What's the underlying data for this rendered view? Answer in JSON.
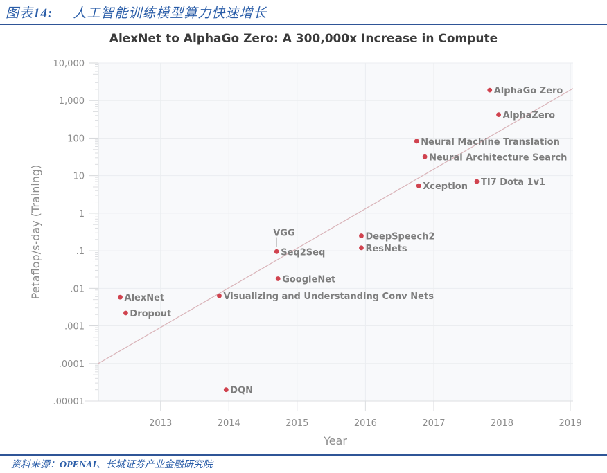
{
  "header": {
    "figure_prefix": "图表",
    "figure_number": "14:",
    "figure_title": "人工智能训练模型算力快速增长"
  },
  "footer": {
    "source_prefix": "资料来源：",
    "source_org": "OPENAI",
    "source_rest": "、长城证券产业金融研究院"
  },
  "colors": {
    "accent_blue": "#2f5597",
    "point_red": "#d0434f",
    "trend_line": "#d9b3b8",
    "plot_bg": "#f8f9fb",
    "grid": "#ebedf0"
  },
  "chart_data": {
    "type": "scatter",
    "title": "AlexNet to AlphaGo Zero: A 300,000x Increase in Compute",
    "xlabel": "Year",
    "ylabel": "Petaflop/s-day (Training)",
    "xlim": [
      2012.09,
      2019.04
    ],
    "ylim": [
      1e-05,
      10000
    ],
    "yscale": "log",
    "grid": true,
    "x_ticks": [
      "2013",
      "2014",
      "2015",
      "2016",
      "2017",
      "2018",
      "2019"
    ],
    "y_ticks": [
      "10,000",
      "1,000",
      "100",
      "10",
      "1",
      ".1",
      ".01",
      ".001",
      ".0001",
      ".00001"
    ],
    "points": [
      {
        "name": "AlexNet",
        "year": 2012.41,
        "value": 0.0058
      },
      {
        "name": "Dropout",
        "year": 2012.49,
        "value": 0.0022
      },
      {
        "name": "Visualizing and Understanding Conv Nets",
        "year": 2013.86,
        "value": 0.0063
      },
      {
        "name": "DQN",
        "year": 2013.96,
        "value": 2e-05
      },
      {
        "name": "VGG",
        "year": 2014.7,
        "value": 0.098
      },
      {
        "name": "Seq2Seq",
        "year": 2014.7,
        "value": 0.095
      },
      {
        "name": "GoogleNet",
        "year": 2014.72,
        "value": 0.018
      },
      {
        "name": "DeepSpeech2",
        "year": 2015.94,
        "value": 0.25
      },
      {
        "name": "ResNets",
        "year": 2015.94,
        "value": 0.12
      },
      {
        "name": "Neural Machine Translation",
        "year": 2016.75,
        "value": 83
      },
      {
        "name": "Neural Architecture Search",
        "year": 2016.87,
        "value": 32
      },
      {
        "name": "Xception",
        "year": 2016.78,
        "value": 5.4
      },
      {
        "name": "TI7 Dota 1v1",
        "year": 2017.63,
        "value": 7
      },
      {
        "name": "AlphaGo Zero",
        "year": 2017.82,
        "value": 1900
      },
      {
        "name": "AlphaZero",
        "year": 2017.95,
        "value": 420
      }
    ],
    "trend_line": {
      "start": {
        "year": 2012.09,
        "value": 0.0001
      },
      "end": {
        "year": 2019.04,
        "value": 2100
      }
    },
    "annotations": [
      "VGG label connected by leader line to Seq2Seq point"
    ]
  }
}
